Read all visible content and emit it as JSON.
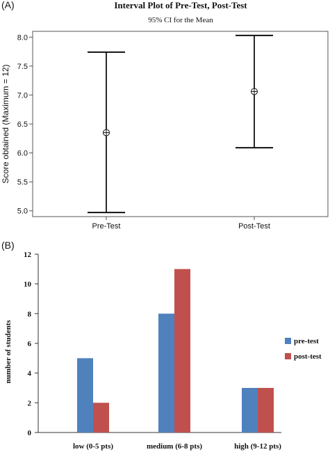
{
  "chart_data": [
    {
      "panel": "(A)",
      "type": "interval",
      "title": "Interval Plot of Pre-Test, Post-Test",
      "subtitle": "95% CI for the Mean",
      "xlabel": "",
      "ylabel": "Score obtained (Maximum = 12)",
      "ylim": [
        4.9,
        8.1
      ],
      "yticks": [
        5.0,
        5.5,
        6.0,
        6.5,
        7.0,
        7.5,
        8.0
      ],
      "ytick_labels": [
        "5.0",
        "5.5",
        "6.0",
        "6.5",
        "7.0",
        "7.5",
        "8.0"
      ],
      "categories": [
        "Pre-Test",
        "Post-Test"
      ],
      "mean": [
        6.35,
        7.06
      ],
      "lower": [
        4.97,
        6.09
      ],
      "upper": [
        7.74,
        8.03
      ],
      "grid": false
    },
    {
      "panel": "(B)",
      "type": "bar",
      "title": "",
      "xlabel": "",
      "ylabel": "number of students",
      "ylim": [
        0,
        12
      ],
      "yticks": [
        0,
        2,
        4,
        6,
        8,
        10,
        12
      ],
      "categories": [
        "low (0-5 pts)",
        "medium (6-8 pts)",
        "high (9-12 pts)"
      ],
      "series": [
        {
          "name": "pre-test",
          "values": [
            5,
            8,
            3
          ],
          "color": "#4f81bd"
        },
        {
          "name": "post-test",
          "values": [
            2,
            11,
            3
          ],
          "color": "#c0504d"
        }
      ],
      "legend": "right",
      "grid": false
    }
  ]
}
